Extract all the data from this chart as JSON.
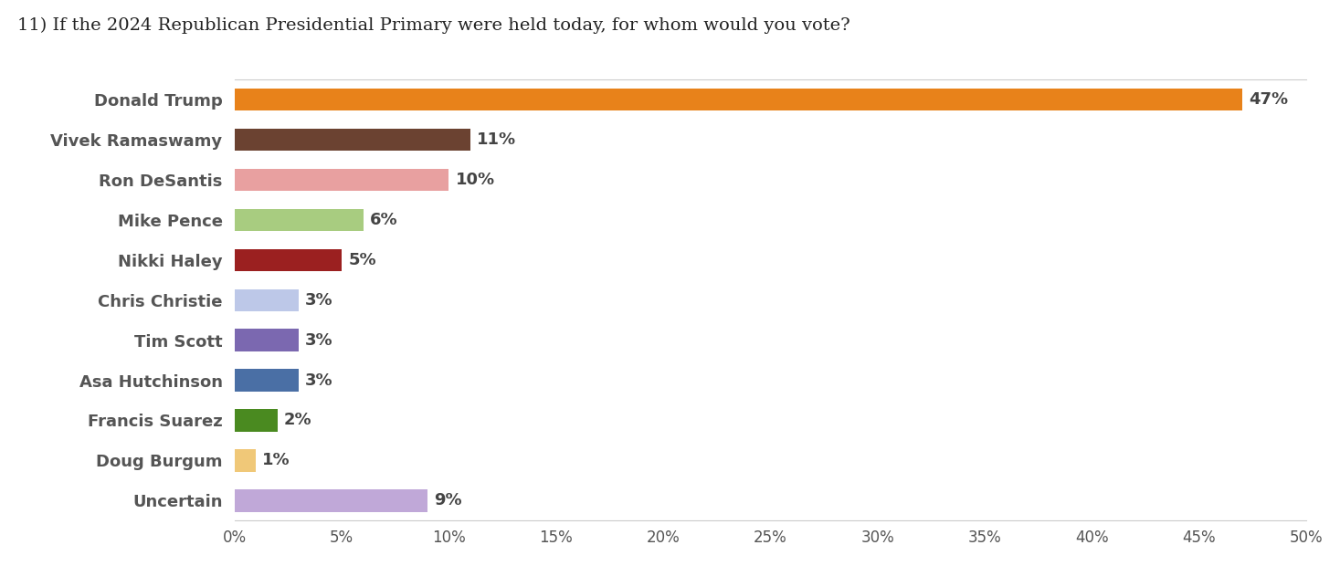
{
  "title": "11) If the 2024 Republican Presidential Primary were held today, for whom would you vote?",
  "candidates": [
    "Donald Trump",
    "Vivek Ramaswamy",
    "Ron DeSantis",
    "Mike Pence",
    "Nikki Haley",
    "Chris Christie",
    "Tim Scott",
    "Asa Hutchinson",
    "Francis Suarez",
    "Doug Burgum",
    "Uncertain"
  ],
  "values": [
    47,
    11,
    10,
    6,
    5,
    3,
    3,
    3,
    2,
    1,
    9
  ],
  "colors": [
    "#E8821A",
    "#6B4231",
    "#E8A0A0",
    "#A8CC80",
    "#9B2020",
    "#BDC8E8",
    "#7B68B0",
    "#4A6FA5",
    "#4A8A20",
    "#F0C878",
    "#C0A8D8"
  ],
  "xlim": [
    0,
    50
  ],
  "xticks": [
    0,
    5,
    10,
    15,
    20,
    25,
    30,
    35,
    40,
    45,
    50
  ],
  "title_fontsize": 14,
  "label_fontsize": 13,
  "bar_label_fontsize": 13,
  "background_color": "#ffffff",
  "label_color": "#555555",
  "title_color": "#222222"
}
